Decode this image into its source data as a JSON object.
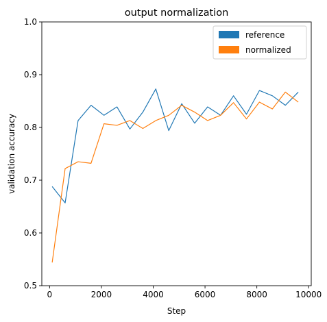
{
  "chart_data": {
    "type": "line",
    "title": "output normalization",
    "xlabel": "Step",
    "ylabel": "validation accuracy",
    "xlim": [
      -300,
      10100
    ],
    "ylim": [
      0.5,
      1.0
    ],
    "xticks": [
      0,
      2000,
      4000,
      6000,
      8000,
      10000
    ],
    "yticks": [
      0.5,
      0.6,
      0.7,
      0.8,
      0.9,
      1.0
    ],
    "xtick_labels": [
      "0",
      "2000",
      "4000",
      "6000",
      "8000",
      "10000"
    ],
    "ytick_labels": [
      "0.5",
      "0.6",
      "0.7",
      "0.8",
      "0.9",
      "1.0"
    ],
    "grid": false,
    "legend_position": "top-right",
    "series": [
      {
        "name": "reference",
        "color": "#1f77b4",
        "x": [
          100,
          600,
          1100,
          1600,
          2100,
          2600,
          3100,
          3600,
          4100,
          4600,
          5100,
          5600,
          6100,
          6600,
          7100,
          7600,
          8100,
          8600,
          9100,
          9600
        ],
        "y": [
          0.688,
          0.657,
          0.813,
          0.842,
          0.823,
          0.839,
          0.797,
          0.829,
          0.873,
          0.794,
          0.845,
          0.808,
          0.839,
          0.823,
          0.86,
          0.825,
          0.87,
          0.86,
          0.842,
          0.867
        ]
      },
      {
        "name": "normalized",
        "color": "#ff7f0e",
        "x": [
          100,
          600,
          1100,
          1600,
          2100,
          2600,
          3100,
          3600,
          4100,
          4600,
          5100,
          5600,
          6100,
          6600,
          7100,
          7600,
          8100,
          8600,
          9100,
          9600
        ],
        "y": [
          0.544,
          0.722,
          0.735,
          0.732,
          0.807,
          0.804,
          0.813,
          0.798,
          0.813,
          0.823,
          0.842,
          0.829,
          0.813,
          0.823,
          0.847,
          0.816,
          0.848,
          0.835,
          0.867,
          0.848
        ]
      }
    ]
  }
}
